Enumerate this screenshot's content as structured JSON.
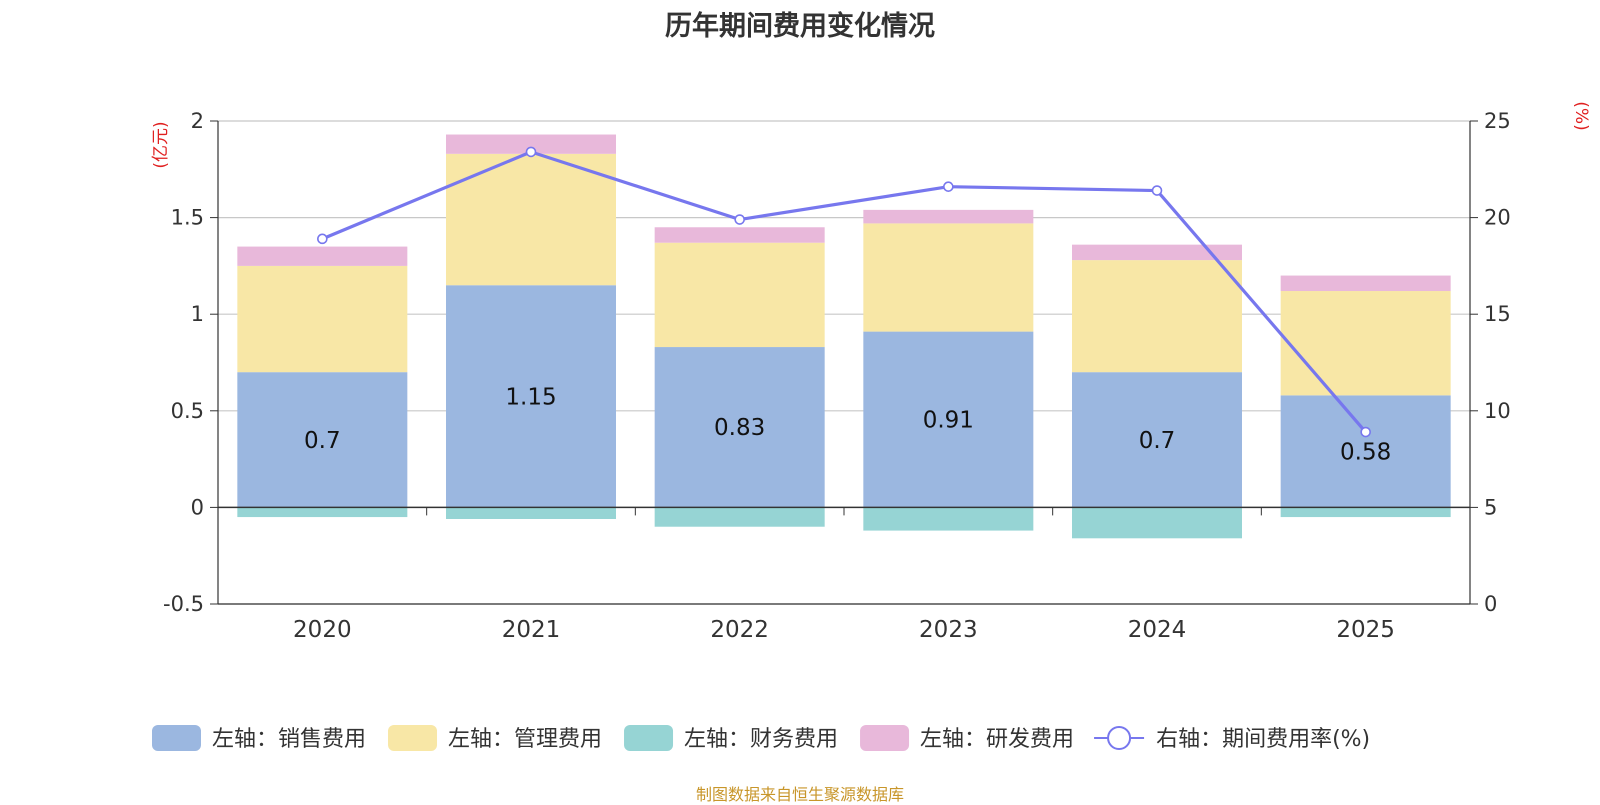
{
  "chart_data": {
    "type": "bar",
    "stacked": true,
    "title": "历年期间费用变化情况",
    "categories": [
      "2020",
      "2021",
      "2022",
      "2023",
      "2024",
      "2025"
    ],
    "left_axis": {
      "unit_label": "(亿元)",
      "min": -0.5,
      "max": 2,
      "ticks": [
        2,
        1.5,
        1,
        0.5,
        0,
        -0.5
      ]
    },
    "right_axis": {
      "unit_label": "(%)",
      "min": 0,
      "max": 25,
      "ticks": [
        25,
        20,
        15,
        10,
        5,
        0
      ]
    },
    "series": [
      {
        "name": "左轴：销售费用",
        "type": "bar",
        "axis": "left",
        "color": "#9bb7e0",
        "values": [
          0.7,
          1.15,
          0.83,
          0.91,
          0.7,
          0.58
        ],
        "labels": [
          "0.7",
          "1.15",
          "0.83",
          "0.91",
          "0.7",
          "0.58"
        ]
      },
      {
        "name": "左轴：管理费用",
        "type": "bar",
        "axis": "left",
        "color": "#f8e7a6",
        "values": [
          0.55,
          0.68,
          0.54,
          0.56,
          0.58,
          0.54
        ]
      },
      {
        "name": "左轴：财务费用",
        "type": "bar",
        "axis": "left",
        "color": "#96d4d4",
        "values": [
          -0.05,
          -0.06,
          -0.1,
          -0.12,
          -0.16,
          -0.05
        ]
      },
      {
        "name": "左轴：研发费用",
        "type": "bar",
        "axis": "left",
        "color": "#e8b8da",
        "values": [
          0.1,
          0.1,
          0.08,
          0.07,
          0.08,
          0.08
        ]
      },
      {
        "name": "右轴：期间费用率(%)",
        "type": "line",
        "axis": "right",
        "color": "#7777ee",
        "values": [
          18.9,
          23.4,
          19.9,
          21.6,
          21.4,
          8.9
        ]
      }
    ],
    "grid": true,
    "legend_position": "bottom"
  },
  "source_note": "制图数据来自恒生聚源数据库"
}
